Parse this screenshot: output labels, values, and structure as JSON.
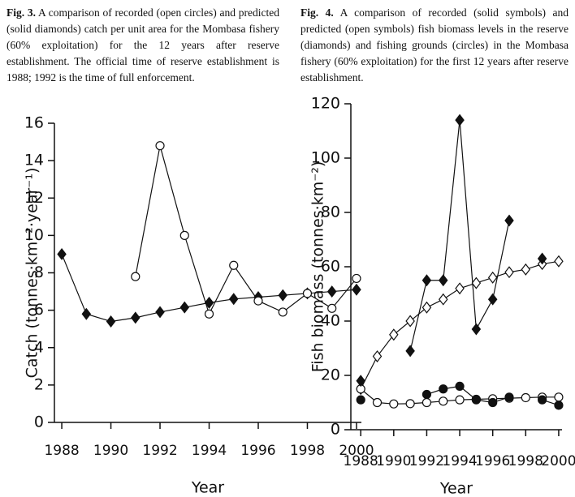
{
  "chart_data": [
    {
      "type": "line",
      "caption_label": "Fig. 3.",
      "caption": "A comparison of recorded (open circles) and predicted (solid diamonds) catch per unit area for the Mombasa fishery (60% exploitation) for the 12 years after reserve establishment. The official time of reserve establishment is 1988; 1992 is the time of full enforcement.",
      "xlabel": "Year",
      "ylabel": "Catch (tonnes·km⁻²·year⁻¹)",
      "x": [
        1988,
        1989,
        1990,
        1991,
        1992,
        1993,
        1994,
        1995,
        1996,
        1997,
        1998,
        1999,
        2000
      ],
      "xlim": [
        1987.7,
        2000.2
      ],
      "xticks": [
        1988,
        1990,
        1992,
        1994,
        1996,
        1998,
        2000
      ],
      "ylim": [
        0,
        16
      ],
      "yticks": [
        0,
        2,
        4,
        6,
        8,
        10,
        12,
        14,
        16
      ],
      "series": [
        {
          "name": "Predicted",
          "color": "#111111",
          "marker": "diamond",
          "filled": true,
          "values": [
            9.0,
            5.8,
            5.4,
            5.6,
            5.9,
            6.15,
            6.4,
            6.6,
            6.7,
            6.8,
            6.9,
            7.0,
            7.1
          ]
        },
        {
          "name": "Recorded",
          "color": "#111111",
          "marker": "circle",
          "filled": false,
          "values": [
            null,
            null,
            null,
            7.8,
            14.8,
            10.0,
            5.8,
            8.4,
            6.5,
            5.9,
            6.9,
            6.1,
            7.7
          ]
        }
      ]
    },
    {
      "type": "line",
      "caption_label": "Fig. 4.",
      "caption": "A comparison of recorded (solid symbols) and predicted (open symbols) fish biomass levels in the reserve (diamonds) and fishing grounds (circles) in the Mombasa fishery (60% exploitation) for the first 12 years after reserve establishment.",
      "xlabel": "Year",
      "ylabel": "Fish biomass (tonnes·km⁻²)",
      "x": [
        1988,
        1989,
        1990,
        1991,
        1992,
        1993,
        1994,
        1995,
        1996,
        1997,
        1998,
        1999,
        2000
      ],
      "xlim": [
        1987.4,
        2000.2
      ],
      "xticks": [
        1988,
        1990,
        1992,
        1994,
        1996,
        1998,
        2000
      ],
      "ylim": [
        0,
        120
      ],
      "yticks": [
        0,
        20,
        40,
        60,
        80,
        100,
        120
      ],
      "series": [
        {
          "name": "Predicted reserve",
          "color": "#111111",
          "marker": "diamond",
          "filled": false,
          "values": [
            15,
            27,
            35,
            40,
            45,
            48,
            52,
            54,
            56,
            58,
            59,
            61,
            62
          ]
        },
        {
          "name": "Predicted fishing grounds",
          "color": "#111111",
          "marker": "circle",
          "filled": false,
          "values": [
            15,
            10,
            9.5,
            9.6,
            10,
            10.5,
            11,
            11.2,
            11.4,
            11.6,
            11.8,
            12,
            12
          ]
        },
        {
          "name": "Recorded reserve",
          "color": "#111111",
          "marker": "diamond",
          "filled": true,
          "values": [
            18,
            null,
            null,
            29,
            55,
            55,
            114,
            37,
            48,
            77,
            null,
            63,
            null
          ]
        },
        {
          "name": "Recorded fishing grounds",
          "color": "#111111",
          "marker": "circle",
          "filled": true,
          "values": [
            11,
            null,
            null,
            null,
            13,
            15,
            16,
            11,
            10,
            12,
            null,
            11,
            9
          ]
        }
      ]
    }
  ]
}
